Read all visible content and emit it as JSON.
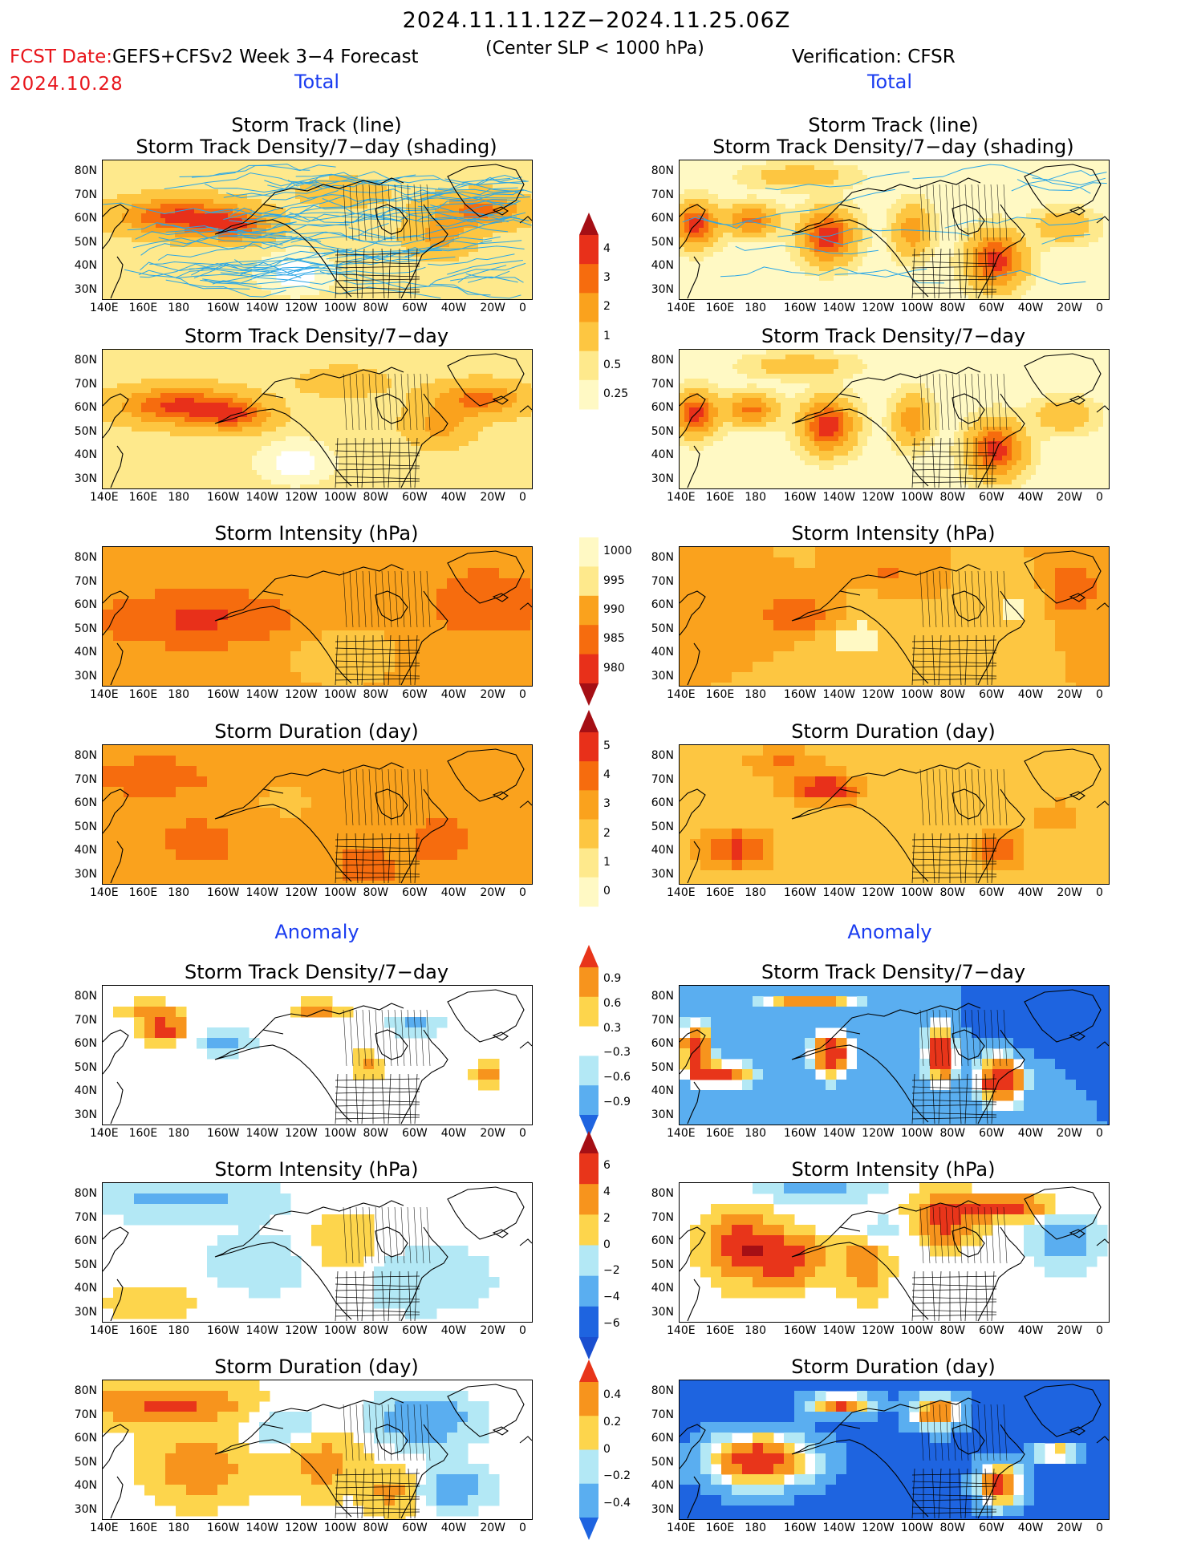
{
  "header": {
    "main_title": "2024.11.11.12Z−2024.11.25.06Z",
    "fcst_label": "FCST Date:",
    "model": "GEFS+CFSv2 Week 3−4 Forecast",
    "fcst_date": "2024.10.28",
    "subtitle": "(Center SLP < 1000 hPa)",
    "verification": "Verification: CFSR"
  },
  "sections": {
    "total": "Total",
    "anomaly": "Anomaly"
  },
  "axes": {
    "lat_labels": [
      "80N",
      "70N",
      "60N",
      "50N",
      "40N",
      "30N"
    ],
    "lon_labels": [
      "140E",
      "160E",
      "180",
      "160W",
      "140W",
      "120W",
      "100W",
      "80W",
      "60W",
      "40W",
      "20W",
      "0"
    ]
  },
  "rows": [
    {
      "title": "Storm Track (line)",
      "title2": "Storm Track Density/7−day (shading)",
      "field": "density",
      "scale": "density",
      "tracks": true
    },
    {
      "title": "Storm Track Density/7−day",
      "title2": "",
      "field": "density",
      "scale": "density",
      "tracks": false
    },
    {
      "title": "Storm Intensity (hPa)",
      "title2": "",
      "field": "intensity",
      "scale": "intensity",
      "tracks": false
    },
    {
      "title": "Storm Duration (day)",
      "title2": "",
      "field": "duration",
      "scale": "duration",
      "tracks": false
    },
    {
      "title": "Storm Track Density/7−day",
      "title2": "",
      "field": "density_anom",
      "scale": "density_anom",
      "tracks": false
    },
    {
      "title": "Storm Intensity (hPa)",
      "title2": "",
      "field": "intensity_anom",
      "scale": "intensity_anom",
      "tracks": false
    },
    {
      "title": "Storm Duration (day)",
      "title2": "",
      "field": "duration_anom",
      "scale": "duration_anom",
      "tracks": false
    }
  ],
  "colorbars": [
    {
      "name": "density",
      "labels": [
        "4",
        "3",
        "2",
        "1",
        "0.5",
        "0.25"
      ],
      "colors": [
        "#a50f15",
        "#e8301a",
        "#f66c0e",
        "#faa21d",
        "#fdc641",
        "#fee98c",
        "#fff9c4"
      ]
    },
    {
      "name": "intensity",
      "labels": [
        "1000",
        "995",
        "990",
        "985",
        "980"
      ],
      "colors": [
        "#fff9c4",
        "#fee98c",
        "#faa21d",
        "#f66c0e",
        "#e8301a",
        "#a50f15"
      ]
    },
    {
      "name": "duration",
      "labels": [
        "5",
        "4",
        "3",
        "2",
        "1",
        "0"
      ],
      "colors": [
        "#a50f15",
        "#e8301a",
        "#f66c0e",
        "#faa21d",
        "#fdc641",
        "#fee98c",
        "#fff9c4"
      ]
    },
    {
      "name": "density_anom",
      "labels": [
        "0.9",
        "0.6",
        "0.3",
        "−0.3",
        "−0.6",
        "−0.9"
      ],
      "colors": [
        "#e8351a",
        "#f7941d",
        "#fdd54c",
        "#ffffff",
        "#b3e8f5",
        "#5aaef0",
        "#1e64e0"
      ]
    },
    {
      "name": "intensity_anom",
      "labels": [
        "6",
        "4",
        "2",
        "0",
        "−2",
        "−4",
        "−6"
      ],
      "colors": [
        "#a50f15",
        "#e8351a",
        "#f7941d",
        "#fdd54c",
        "#b3e8f5",
        "#5aaef0",
        "#1e64e0",
        "#1a4fd0"
      ]
    },
    {
      "name": "duration_anom",
      "labels": [
        "0.4",
        "0.2",
        "0",
        "−0.2",
        "−0.4"
      ],
      "colors": [
        "#e8351a",
        "#f7941d",
        "#fdd54c",
        "#b3e8f5",
        "#5aaef0",
        "#1e64e0"
      ]
    }
  ],
  "colors": {
    "red_text": "#e8151b",
    "blue_text": "#1a3cf0",
    "track_line": "#2aa6e6"
  }
}
